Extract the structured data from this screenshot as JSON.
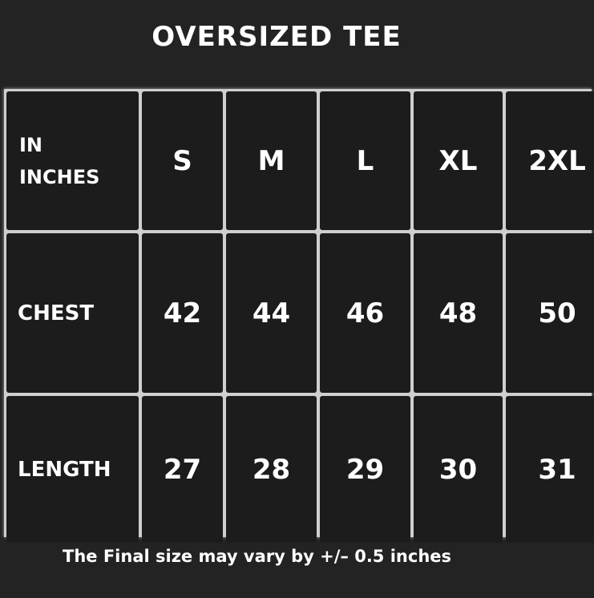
{
  "title": "OVERSIZED TEE",
  "table": {
    "corner": [
      "IN",
      "INCHES"
    ],
    "sizes": [
      "S",
      "M",
      "L",
      "XL",
      "2XL"
    ],
    "rows": [
      {
        "label": "CHEST",
        "values": [
          "42",
          "44",
          "46",
          "48",
          "50"
        ]
      },
      {
        "label": "LENGTH",
        "values": [
          "27",
          "28",
          "29",
          "30",
          "31"
        ]
      }
    ]
  },
  "note": "The Final size may vary by +/– 0.5 inches",
  "colors": {
    "background": "#232323",
    "cell": "#1c1c1c",
    "grid_lines": "#cfcfcf",
    "text": "#ffffff"
  }
}
